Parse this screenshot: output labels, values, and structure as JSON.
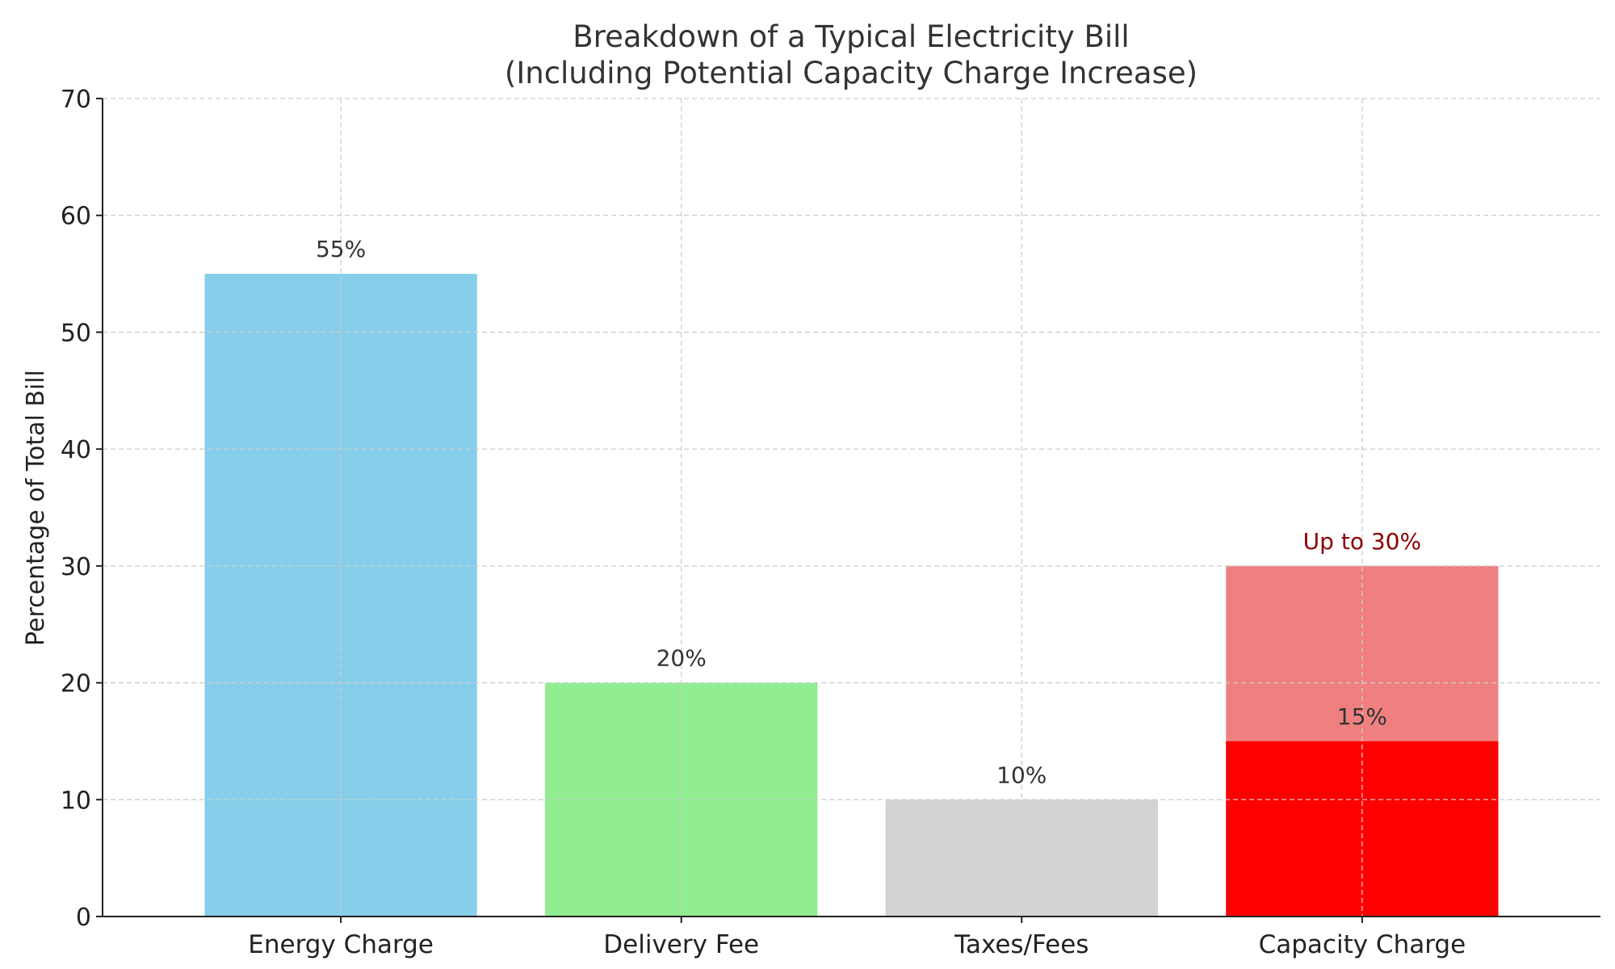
{
  "chart_data": {
    "type": "bar",
    "title": "Breakdown of a Typical Electricity Bill",
    "subtitle": "(Including Potential Capacity Charge Increase)",
    "xlabel": "",
    "ylabel": "Percentage of Total Bill",
    "ylim": [
      0,
      70
    ],
    "yticks": [
      0,
      10,
      20,
      30,
      40,
      50,
      60,
      70
    ],
    "grid": true,
    "categories": [
      "Energy Charge",
      "Delivery Fee",
      "Taxes/Fees",
      "Capacity Charge"
    ],
    "values": [
      55,
      20,
      10,
      15
    ],
    "value_labels": [
      "55%",
      "20%",
      "10%",
      "15%"
    ],
    "colors": [
      "#87ceeb",
      "#90ee90",
      "#d3d3d3",
      "#ff0000"
    ],
    "potential_increase": {
      "category": "Capacity Charge",
      "value": 30,
      "color": "#f08080",
      "label": "Up to 30%",
      "label_color": "#8b0000"
    }
  }
}
